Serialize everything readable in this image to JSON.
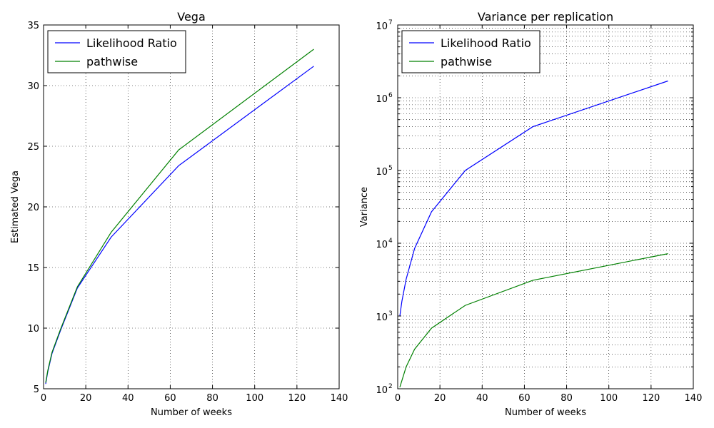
{
  "colors": {
    "series_1": "#0000ff",
    "series_2": "#008000",
    "grid": "#000000",
    "background": "#ffffff"
  },
  "chart_data": [
    {
      "type": "line",
      "title": "Vega",
      "xlabel": "Number of weeks",
      "ylabel": "Estimated Vega",
      "xlim": [
        0,
        140
      ],
      "ylim": [
        5,
        35
      ],
      "xticks": [
        "0",
        "20",
        "40",
        "60",
        "80",
        "100",
        "120",
        "140"
      ],
      "yticks": [
        "5",
        "10",
        "15",
        "20",
        "25",
        "30",
        "35"
      ],
      "y_scale": "linear",
      "grid": true,
      "legend_position": "top-left",
      "x": [
        1,
        2,
        4,
        8,
        16,
        32,
        64,
        128
      ],
      "series": [
        {
          "name": "Likelihood Ratio",
          "color": "#0000ff",
          "values": [
            5.4,
            6.4,
            7.9,
            9.8,
            13.3,
            17.5,
            23.4,
            31.6
          ]
        },
        {
          "name": "pathwise",
          "color": "#008000",
          "values": [
            5.5,
            6.5,
            8.0,
            9.9,
            13.4,
            17.9,
            24.7,
            33.0
          ]
        }
      ]
    },
    {
      "type": "line",
      "title": "Variance per replication",
      "xlabel": "Number of weeks",
      "ylabel": "Variance",
      "xlim": [
        0,
        140
      ],
      "ylim": [
        100,
        10000000
      ],
      "xticks": [
        "0",
        "20",
        "40",
        "60",
        "80",
        "100",
        "120",
        "140"
      ],
      "yticks": [
        {
          "base": "10",
          "exp": "2"
        },
        {
          "base": "10",
          "exp": "3"
        },
        {
          "base": "10",
          "exp": "4"
        },
        {
          "base": "10",
          "exp": "5"
        },
        {
          "base": "10",
          "exp": "6"
        },
        {
          "base": "10",
          "exp": "7"
        }
      ],
      "y_scale": "log",
      "grid": true,
      "legend_position": "top-left",
      "x": [
        1,
        2,
        4,
        8,
        16,
        32,
        64,
        128
      ],
      "series": [
        {
          "name": "Likelihood Ratio",
          "color": "#0000ff",
          "values": [
            1000,
            1600,
            3200,
            8500,
            27000,
            100000,
            400000,
            1700000
          ]
        },
        {
          "name": "pathwise",
          "color": "#008000",
          "values": [
            105,
            130,
            200,
            350,
            680,
            1400,
            3100,
            7200
          ]
        }
      ]
    }
  ]
}
